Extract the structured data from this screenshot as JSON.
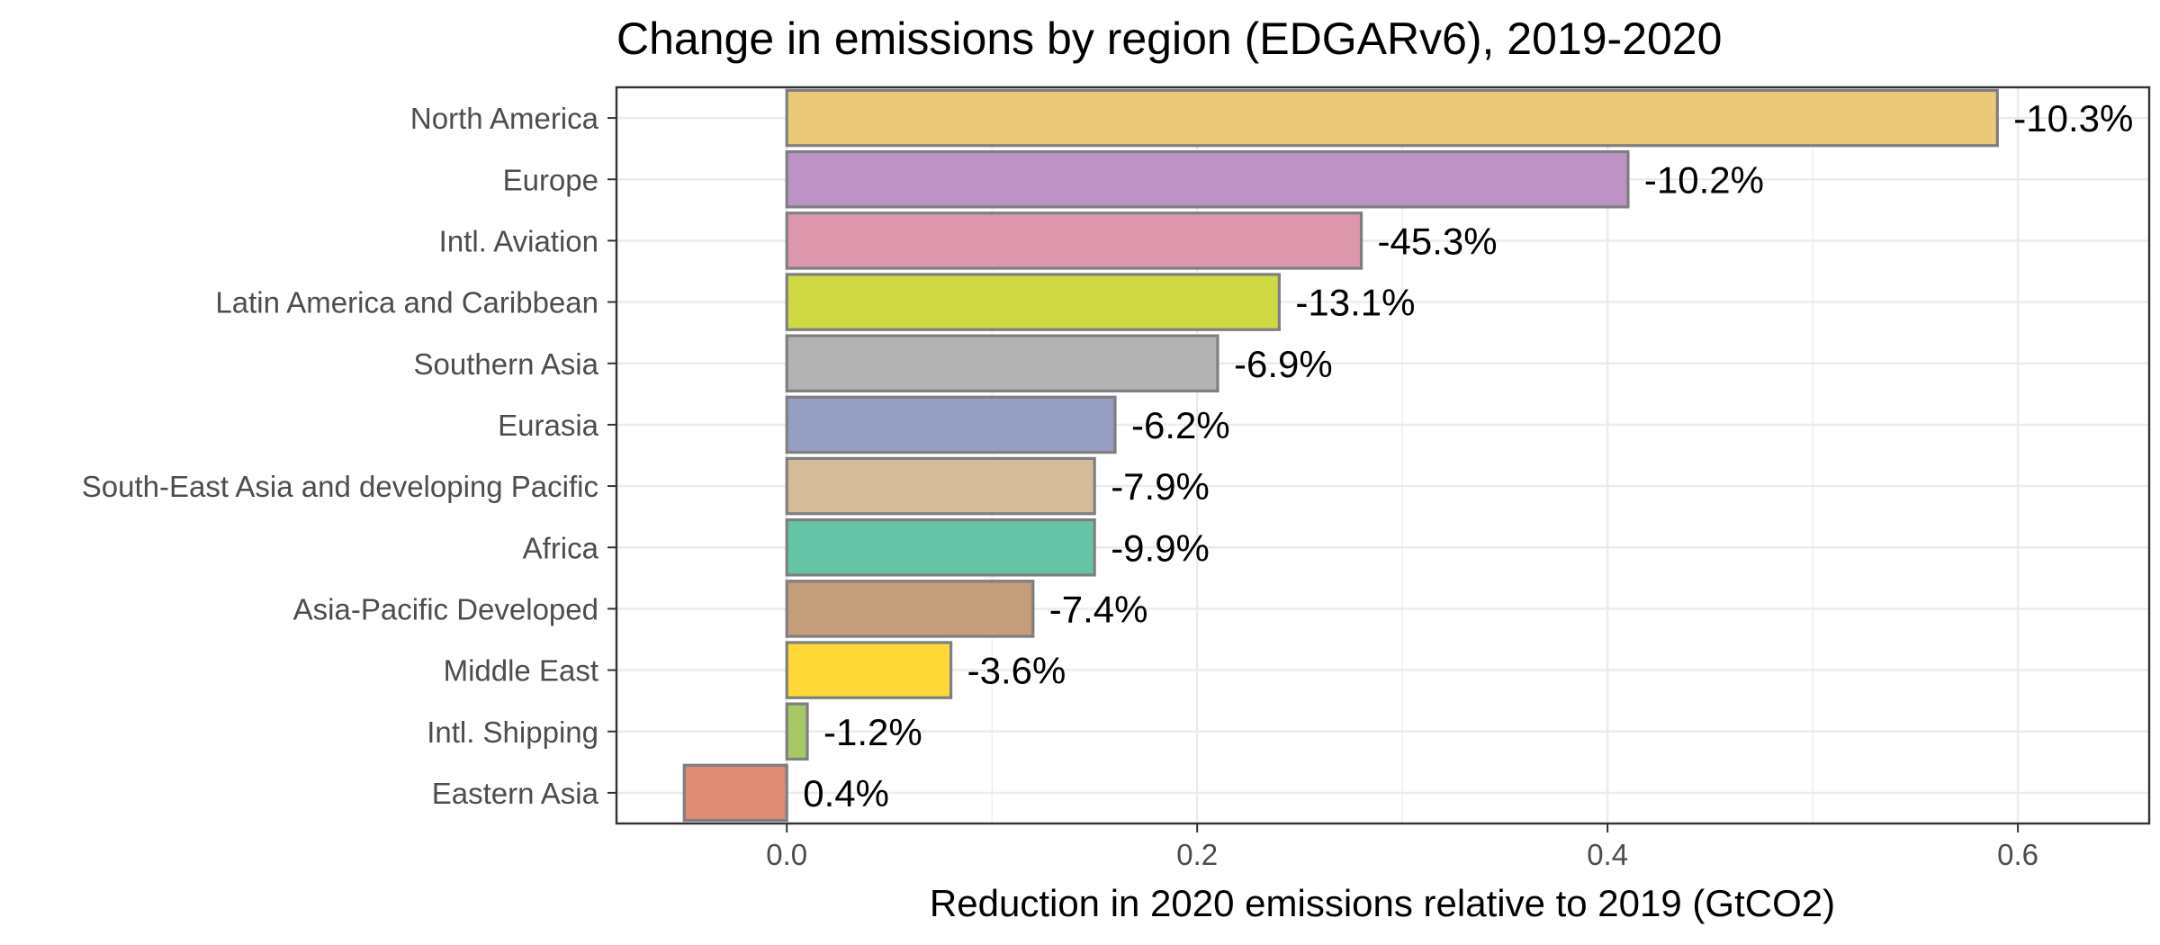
{
  "chart_data": {
    "type": "bar",
    "orientation": "horizontal",
    "title": "Change in emissions by region (EDGARv6), 2019-2020",
    "xlabel": "Reduction in 2020 emissions relative to 2019 (GtCO2)",
    "ylabel": "",
    "xlim": [
      -0.083,
      0.664
    ],
    "x_ticks": [
      0.0,
      0.2,
      0.4,
      0.6
    ],
    "x_tick_labels": [
      "0.0",
      "0.2",
      "0.4",
      "0.6"
    ],
    "grid": true,
    "legend": "none",
    "categories": [
      "North America",
      "Europe",
      "Intl. Aviation",
      "Latin America and Caribbean",
      "Southern Asia",
      "Eurasia",
      "South-East Asia and developing Pacific",
      "Africa",
      "Asia-Pacific Developed",
      "Middle East",
      "Intl. Shipping",
      "Eastern Asia"
    ],
    "values": [
      0.59,
      0.41,
      0.28,
      0.24,
      0.21,
      0.16,
      0.15,
      0.15,
      0.12,
      0.08,
      0.01,
      -0.05
    ],
    "data_labels": [
      "-10.3%",
      "-10.2%",
      "-45.3%",
      "-13.1%",
      "-6.9%",
      "-6.2%",
      "-7.9%",
      "-9.9%",
      "-7.4%",
      "-3.6%",
      "-1.2%",
      "0.4%"
    ],
    "colors": [
      "#ebc97b",
      "#bd93c5",
      "#dd97ac",
      "#cfd944",
      "#b3b3b3",
      "#969ec2",
      "#d4bc9b",
      "#66c4a6",
      "#c49d7a",
      "#fdd837",
      "#a6c865",
      "#df8c76"
    ]
  }
}
